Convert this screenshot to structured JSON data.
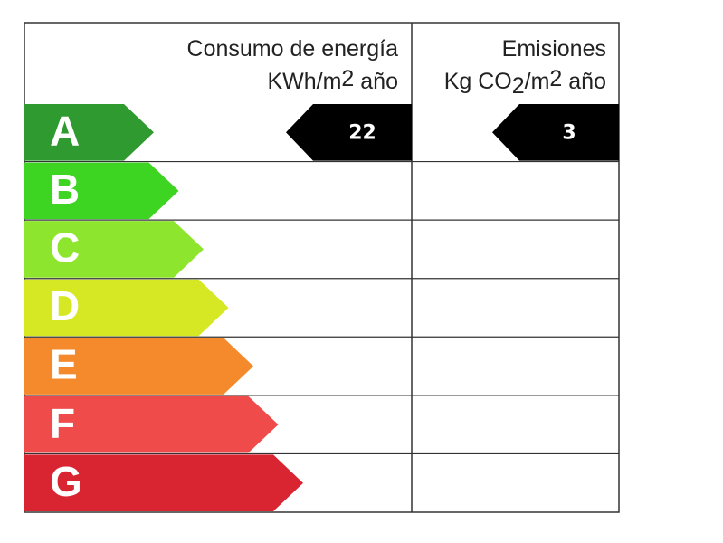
{
  "header": {
    "consumption": {
      "title": "Consumo de energía",
      "unit": [
        "KWh/m",
        "2",
        " año"
      ]
    },
    "emissions": {
      "title": "Emisiones",
      "unit": [
        "Kg CO",
        "2",
        "/m",
        "2",
        " año"
      ]
    }
  },
  "ratings": [
    {
      "letter": "A",
      "color": "#2f9a30"
    },
    {
      "letter": "B",
      "color": "#3ed422"
    },
    {
      "letter": "C",
      "color": "#8ee52d"
    },
    {
      "letter": "D",
      "color": "#d5e823"
    },
    {
      "letter": "E",
      "color": "#f48a2b"
    },
    {
      "letter": "F",
      "color": "#f04b4b"
    },
    {
      "letter": "G",
      "color": "#d82531"
    }
  ],
  "consumption": {
    "value": 22,
    "rating": "A"
  },
  "emissions": {
    "value": 3,
    "rating": "A"
  }
}
